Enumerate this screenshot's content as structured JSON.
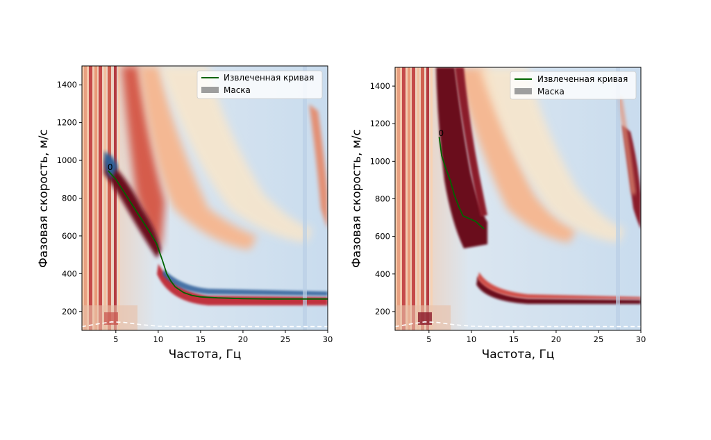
{
  "chart_data": [
    {
      "type": "heatmap",
      "xlabel": "Частота, Гц",
      "ylabel": "Фазовая скорость, м/с",
      "xlim": [
        1,
        30
      ],
      "ylim": [
        100,
        1500
      ],
      "xticks": [
        5,
        10,
        15,
        20,
        25,
        30
      ],
      "yticks": [
        200,
        400,
        600,
        800,
        1000,
        1200,
        1400
      ],
      "colormap": "RdYlBu_r",
      "legend": {
        "placement": "top-right",
        "entries": [
          "Извлеченная кривая",
          "Маска"
        ]
      },
      "annotation": "0",
      "colors": {
        "curve": "#006400",
        "mask": "#9e9e9e",
        "noise_line": "#ffffff"
      },
      "series": [
        {
          "name": "Извлеченная кривая",
          "x": [
            4.1,
            5.0,
            6.0,
            7.0,
            8.0,
            9.0,
            9.8,
            10.5,
            11.0,
            11.5,
            12.0,
            13.0,
            14.0,
            15.0,
            17.0,
            20.0,
            23.0,
            26.0,
            28.0,
            30.0
          ],
          "y": [
            945,
            900,
            830,
            760,
            690,
            620,
            560,
            470,
            400,
            360,
            330,
            300,
            285,
            277,
            272,
            268,
            266,
            266,
            266,
            266
          ]
        },
        {
          "name": "Нижняя граница",
          "x": [
            1.0,
            3.0,
            4.5,
            6.0,
            8.0,
            10.0,
            12.0,
            30.0
          ],
          "y": [
            120,
            135,
            145,
            142,
            130,
            122,
            120,
            120
          ]
        }
      ]
    },
    {
      "type": "heatmap",
      "xlabel": "Частота, Гц",
      "ylabel": "Фазовая скорость, м/с",
      "xlim": [
        1,
        30
      ],
      "ylim": [
        100,
        1500
      ],
      "xticks": [
        5,
        10,
        15,
        20,
        25,
        30
      ],
      "yticks": [
        200,
        400,
        600,
        800,
        1000,
        1200,
        1400
      ],
      "colormap": "RdYlBu_r",
      "legend": {
        "placement": "top-right",
        "entries": [
          "Извлеченная кривая",
          "Маска"
        ]
      },
      "annotation": "0",
      "colors": {
        "curve": "#006400",
        "mask": "#9e9e9e",
        "noise_line": "#ffffff"
      },
      "series": [
        {
          "name": "Извлеченная кривая",
          "x": [
            6.2,
            6.5,
            7.0,
            7.5,
            8.0,
            8.5,
            9.0,
            9.5,
            10.5,
            11.0,
            11.5
          ],
          "y": [
            1130,
            1030,
            960,
            900,
            820,
            760,
            710,
            700,
            680,
            660,
            640
          ]
        },
        {
          "name": "Нижняя граница",
          "x": [
            1.0,
            3.0,
            4.5,
            6.0,
            8.0,
            10.0,
            12.0,
            30.0
          ],
          "y": [
            120,
            135,
            145,
            142,
            130,
            122,
            120,
            120
          ]
        }
      ]
    }
  ]
}
